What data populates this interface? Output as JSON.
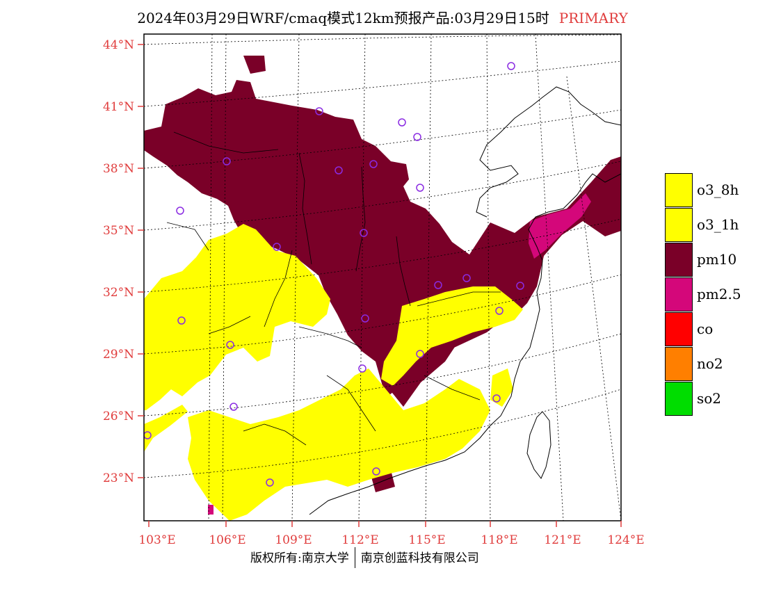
{
  "title": {
    "main": "2024年03月29日WRF/cmaq模式12km预报产品:03月29日15时",
    "tag": "PRIMARY"
  },
  "axes": {
    "lat_labels": [
      "44°N",
      "41°N",
      "38°N",
      "35°N",
      "32°N",
      "29°N",
      "26°N",
      "23°N"
    ],
    "lon_labels": [
      "103°E",
      "106°E",
      "109°E",
      "112°E",
      "115°E",
      "118°E",
      "121°E",
      "124°E"
    ]
  },
  "legend": [
    {
      "label": "o3_8h",
      "color": "#ffff00"
    },
    {
      "label": "o3_1h",
      "color": "#ffff00"
    },
    {
      "label": "pm10",
      "color": "#7a0028"
    },
    {
      "label": "pm2.5",
      "color": "#d4077a"
    },
    {
      "label": "co",
      "color": "#ff0000"
    },
    {
      "label": "no2",
      "color": "#ff7f00"
    },
    {
      "label": "so2",
      "color": "#00dd00"
    }
  ],
  "credit": {
    "left": "版权所有:南京大学",
    "right": "南京创蓝科技有限公司"
  },
  "colors": {
    "axis_label": "#e03c3c",
    "station_marker": "#8a2be2"
  }
}
